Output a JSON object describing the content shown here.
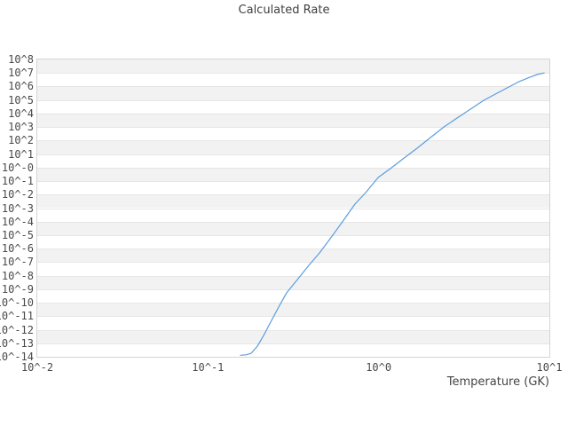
{
  "chart_data": {
    "type": "line",
    "title": "Calculated Rate",
    "xlabel": "Temperature (GK)",
    "ylabel": "",
    "x_scale": "log",
    "y_scale": "log",
    "xlim": [
      0.01,
      10
    ],
    "ylim": [
      1e-14,
      100000000.0
    ],
    "grid": "horizontal-decade-bands",
    "legend": "none",
    "x_tick_labels": [
      "10^-2",
      "10^-1",
      "10^0",
      "10^1"
    ],
    "y_tick_labels": [
      "10^8",
      "10^7",
      "10^6",
      "10^5",
      "10^4",
      "10^3",
      "10^2",
      "10^1",
      "10^-0",
      "10^-1",
      "10^-2",
      "10^-3",
      "10^-4",
      "10^-5",
      "10^-6",
      "10^-7",
      "10^-8",
      "10^-9",
      "10^-10",
      "10^-11",
      "10^-12",
      "10^-13",
      "10^-14"
    ],
    "colors": {
      "line": "#5b9de0",
      "band_gray": "#f2f2f2",
      "band_white": "#ffffff",
      "grid_line": "#e6e6e6",
      "plot_border": "#d4d4d4",
      "text": "#4a4a4a"
    },
    "series": [
      {
        "name": "calculated-rate",
        "points": [
          [
            0.155,
            1.3e-14
          ],
          [
            0.167,
            1.4e-14
          ],
          [
            0.179,
            1.8e-14
          ],
          [
            0.195,
            6.2e-14
          ],
          [
            0.212,
            3.8e-13
          ],
          [
            0.233,
            3.7e-12
          ],
          [
            0.263,
            6.5e-11
          ],
          [
            0.289,
            5.4e-10
          ],
          [
            0.334,
            5.2e-09
          ],
          [
            0.39,
            5.8e-08
          ],
          [
            0.45,
            4.8e-07
          ],
          [
            0.52,
            5.4e-06
          ],
          [
            0.608,
            8.2e-05
          ],
          [
            0.727,
            0.002
          ],
          [
            0.84,
            0.014
          ],
          [
            0.993,
            0.185
          ],
          [
            1.17,
            0.84
          ],
          [
            1.41,
            5.1
          ],
          [
            1.68,
            27
          ],
          [
            2.01,
            166
          ],
          [
            2.41,
            1000.0
          ],
          [
            2.88,
            4600.0
          ],
          [
            3.45,
            21000.0
          ],
          [
            4.13,
            95000.0
          ],
          [
            4.94,
            320000.0
          ],
          [
            5.77,
            910000.0
          ],
          [
            6.66,
            2300000.0
          ],
          [
            7.69,
            4900000.0
          ],
          [
            8.47,
            7600000.0
          ],
          [
            9.32,
            10000000.0
          ]
        ]
      }
    ]
  }
}
